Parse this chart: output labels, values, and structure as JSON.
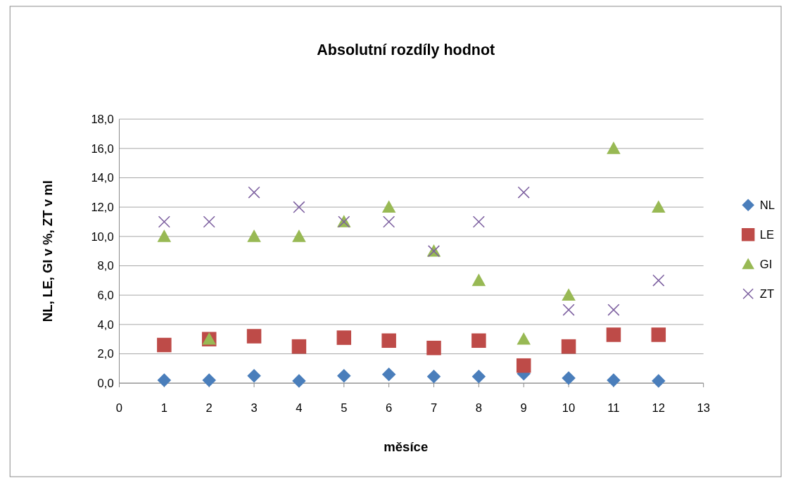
{
  "chart_data": {
    "type": "scatter",
    "title": "Absolutní rozdíly hodnot",
    "xlabel": "měsíce",
    "ylabel": "NL, LE, GI v %, ZT v ml",
    "x": [
      1,
      2,
      3,
      4,
      5,
      6,
      7,
      8,
      9,
      10,
      11,
      12
    ],
    "series": [
      {
        "name": "NL",
        "color": "#4a7ebb",
        "marker": "diamond",
        "values": [
          0.2,
          0.2,
          0.5,
          0.15,
          0.5,
          0.6,
          0.45,
          0.45,
          0.65,
          0.35,
          0.2,
          0.15
        ]
      },
      {
        "name": "LE",
        "color": "#be4b48",
        "marker": "square",
        "values": [
          2.6,
          3.0,
          3.2,
          2.5,
          3.1,
          2.9,
          2.4,
          2.9,
          1.2,
          2.5,
          3.3,
          3.3
        ]
      },
      {
        "name": "GI",
        "color": "#98b954",
        "marker": "triangle",
        "values": [
          10,
          3,
          10,
          10,
          11,
          12,
          9,
          7,
          3,
          6,
          16,
          12
        ]
      },
      {
        "name": "ZT",
        "color": "#7d60a0",
        "marker": "cross",
        "values": [
          11,
          11,
          13,
          12,
          11,
          11,
          9,
          11,
          13,
          5,
          5,
          7
        ]
      }
    ],
    "xlim": [
      0,
      13
    ],
    "xticks": [
      0,
      1,
      2,
      3,
      4,
      5,
      6,
      7,
      8,
      9,
      10,
      11,
      12,
      13
    ],
    "ylim": [
      0,
      18
    ],
    "yticks": [
      {
        "value": 0,
        "label": "0,0"
      },
      {
        "value": 2,
        "label": "2,0"
      },
      {
        "value": 4,
        "label": "4,0"
      },
      {
        "value": 6,
        "label": "6,0"
      },
      {
        "value": 8,
        "label": "8,0"
      },
      {
        "value": 10,
        "label": "10,0"
      },
      {
        "value": 12,
        "label": "12,0"
      },
      {
        "value": 14,
        "label": "14,0"
      },
      {
        "value": 16,
        "label": "16,0"
      },
      {
        "value": 18,
        "label": "18,0"
      }
    ],
    "grid": "y",
    "legend": "right"
  }
}
